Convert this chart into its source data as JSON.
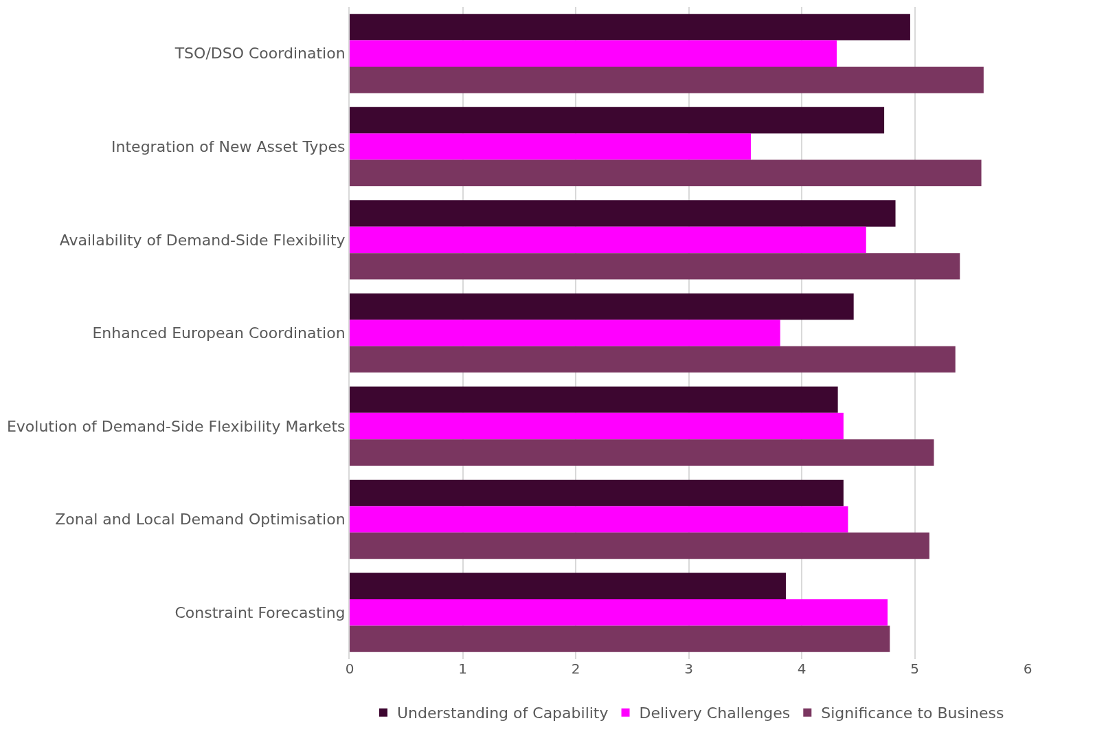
{
  "chart_data": {
    "type": "bar",
    "orientation": "horizontal",
    "categories": [
      "TSO/DSO Coordination",
      "Integration of New Asset Types",
      "Availability of Demand-Side Flexibility",
      "Enhanced European Coordination",
      "Evolution of Demand-Side Flexibility Markets",
      "Zonal and Local Demand Optimisation",
      "Constraint Forecasting"
    ],
    "series": [
      {
        "name": "Understanding of Capability",
        "color": "#3d0630",
        "values": [
          4.96,
          4.73,
          4.83,
          4.46,
          4.32,
          4.37,
          3.86
        ]
      },
      {
        "name": "Delivery Challenges",
        "color": "#ff00ff",
        "values": [
          4.31,
          3.55,
          4.57,
          3.81,
          4.37,
          4.41,
          4.76
        ]
      },
      {
        "name": "Significance to Business",
        "color": "#7a3660",
        "values": [
          5.61,
          5.59,
          5.4,
          5.36,
          5.17,
          5.13,
          4.78
        ]
      }
    ],
    "xlim": [
      0,
      6
    ],
    "xticks": [
      0,
      1,
      2,
      3,
      4,
      5,
      6
    ],
    "grid": "x",
    "legend": "bottom"
  }
}
